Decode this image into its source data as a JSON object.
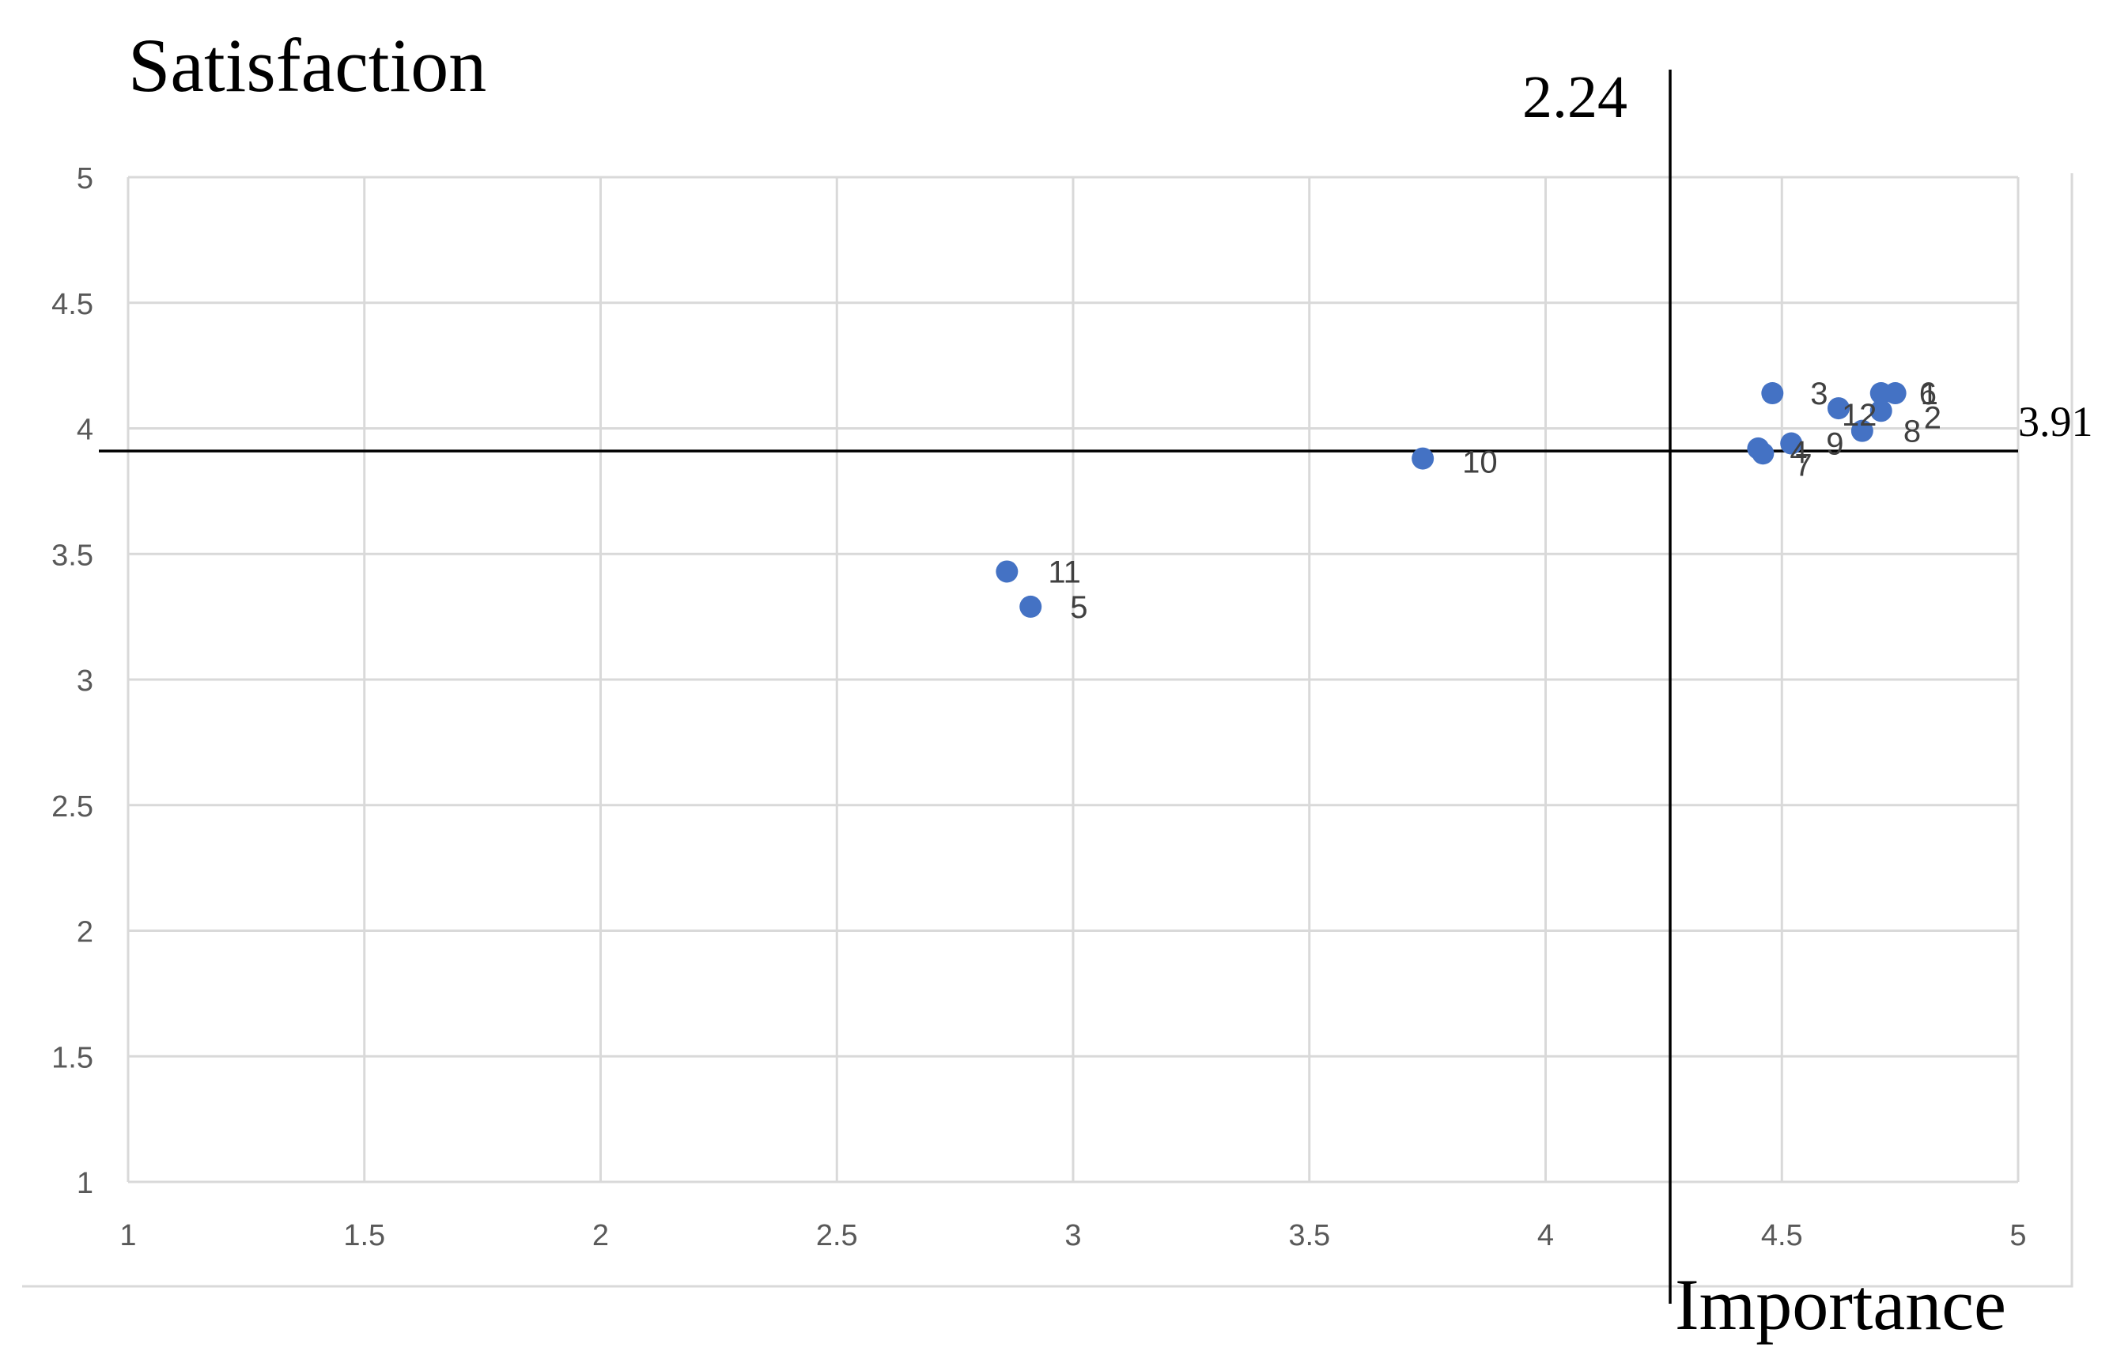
{
  "chart_data": {
    "type": "scatter",
    "ylabel": "Satisfaction",
    "xlabel": "Importance",
    "xlim": [
      1,
      5
    ],
    "ylim": [
      1,
      5
    ],
    "x_ticks": [
      "1",
      "1.5",
      "2",
      "2.5",
      "3",
      "3.5",
      "4",
      "4.5",
      "5"
    ],
    "y_ticks": [
      "1",
      "1.5",
      "2",
      "2.5",
      "3",
      "3.5",
      "4",
      "4.5",
      "5"
    ],
    "grid": true,
    "reference_lines": {
      "vertical_label": "2.24",
      "horizontal_value": 3.91,
      "horizontal_label": "3.91"
    },
    "marker_color": "#4472c4",
    "points": [
      {
        "label": "1",
        "x": 4.74,
        "y": 4.14
      },
      {
        "label": "2",
        "x": 4.71,
        "y": 4.07
      },
      {
        "label": "3",
        "x": 4.48,
        "y": 4.14
      },
      {
        "label": "4",
        "x": 4.45,
        "y": 3.92
      },
      {
        "label": "5",
        "x": 2.91,
        "y": 3.29
      },
      {
        "label": "6",
        "x": 4.71,
        "y": 4.14
      },
      {
        "label": "7",
        "x": 4.46,
        "y": 3.9
      },
      {
        "label": "8",
        "x": 4.67,
        "y": 3.99
      },
      {
        "label": "9",
        "x": 4.52,
        "y": 3.94
      },
      {
        "label": "10",
        "x": 3.74,
        "y": 3.88
      },
      {
        "label": "11",
        "x": 2.86,
        "y": 3.43
      },
      {
        "label": "12",
        "x": 4.62,
        "y": 4.08
      }
    ]
  }
}
